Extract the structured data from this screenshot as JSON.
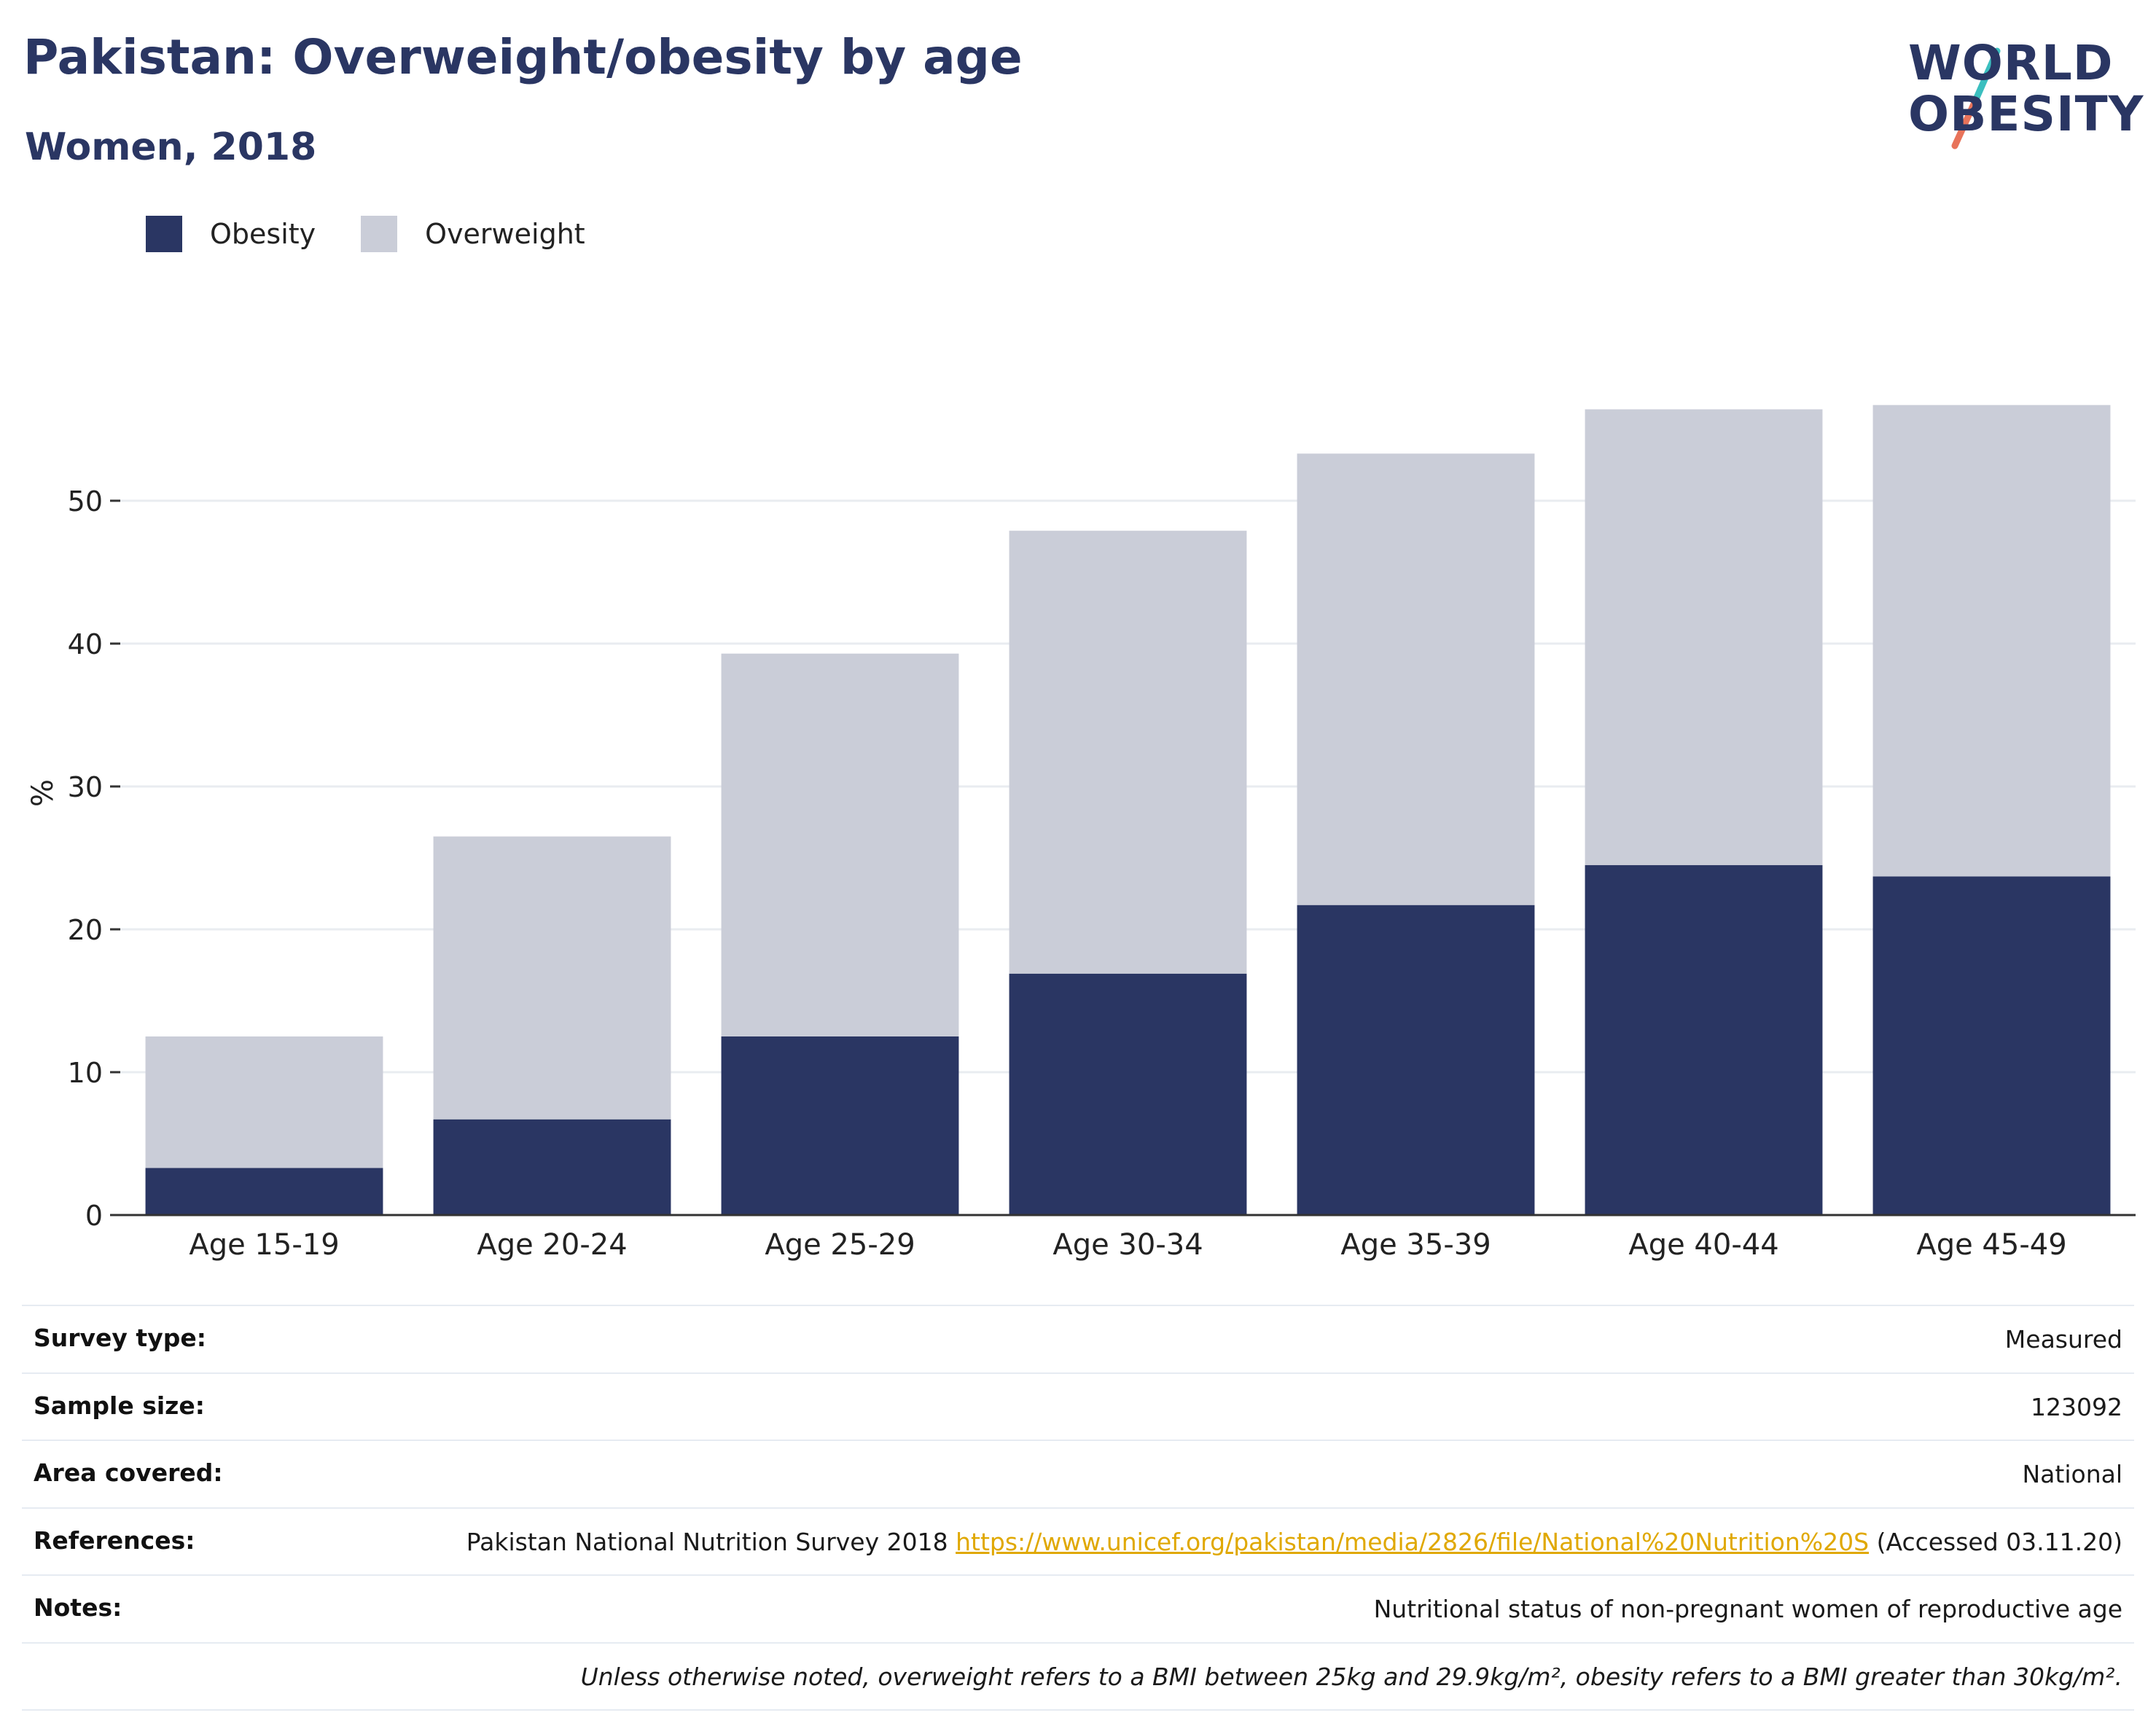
{
  "header": {
    "title": "Pakistan: Overweight/obesity by age",
    "subtitle": "Women, 2018"
  },
  "logo": {
    "line1": "WORLD",
    "line2": "OBESITY",
    "colors": {
      "text": "#2a3663",
      "accent_top": "#3bbfbf",
      "accent_bottom": "#e8735a"
    }
  },
  "colors": {
    "obesity": "#2a3663",
    "overweight": "#cacdd8",
    "grid": "#e9ecf0",
    "axis": "#333333"
  },
  "chart_data": {
    "type": "bar",
    "stacked": true,
    "categories": [
      "Age 15-19",
      "Age 20-24",
      "Age 25-29",
      "Age 30-34",
      "Age 35-39",
      "Age 40-44",
      "Age 45-49"
    ],
    "series": [
      {
        "name": "Obesity",
        "color": "#2a3663",
        "values": [
          3.3,
          6.7,
          12.5,
          16.9,
          21.7,
          24.5,
          23.7
        ]
      },
      {
        "name": "Overweight",
        "color": "#cacdd8",
        "values": [
          9.2,
          19.8,
          26.8,
          31.0,
          31.6,
          31.9,
          33.0
        ]
      }
    ],
    "ylabel": "%",
    "ylim": [
      0,
      60
    ],
    "yticks": [
      0,
      10,
      20,
      30,
      40,
      50
    ],
    "grid": true,
    "legend_position": "top-left"
  },
  "info": {
    "rows": [
      {
        "key": "Survey type:",
        "value": "Measured"
      },
      {
        "key": "Sample size:",
        "value": "123092"
      },
      {
        "key": "Area covered:",
        "value": "National"
      }
    ],
    "references": {
      "key": "References:",
      "prefix": "Pakistan National Nutrition Survey 2018",
      "link": "https://www.unicef.org/pakistan/media/2826/file/National%20Nutrition%20S",
      "suffix": "(Accessed 03.11.20)"
    },
    "notes": {
      "key": "Notes:",
      "value": "Nutritional status of non-pregnant women of reproductive age"
    },
    "footnote": "Unless otherwise noted, overweight refers to a BMI between 25kg and 29.9kg/m², obesity refers to a BMI greater than 30kg/m²."
  }
}
